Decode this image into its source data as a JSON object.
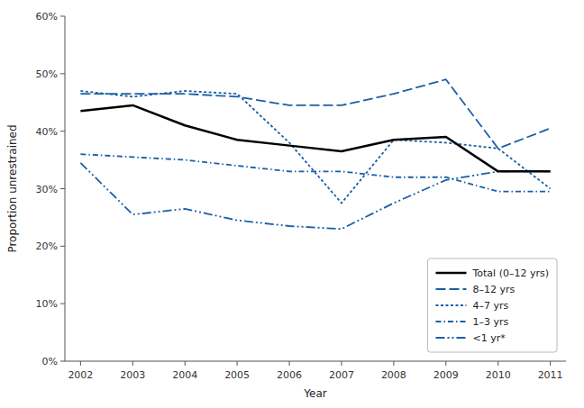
{
  "chart_data": {
    "type": "line",
    "xlabel": "Year",
    "ylabel": "Proportion unrestrained",
    "x": [
      2002,
      2003,
      2004,
      2005,
      2006,
      2007,
      2008,
      2009,
      2010,
      2011
    ],
    "xlim": [
      2001.7,
      2011.3
    ],
    "xticks": [
      2002,
      2003,
      2004,
      2005,
      2006,
      2007,
      2008,
      2009,
      2010,
      2011
    ],
    "ylim": [
      0,
      60
    ],
    "yticks": [
      {
        "value": 0,
        "label": "0%"
      },
      {
        "value": 10,
        "label": "10%"
      },
      {
        "value": 20,
        "label": "20%"
      },
      {
        "value": 30,
        "label": "30%"
      },
      {
        "value": 40,
        "label": "40%"
      },
      {
        "value": 50,
        "label": "50%"
      },
      {
        "value": 60,
        "label": "60%"
      }
    ],
    "grid": false,
    "legend": "lower right",
    "series": [
      {
        "name": "Total (0–12 yrs)",
        "color": "#000000",
        "line_style": "solid",
        "values": [
          43.5,
          44.5,
          41.0,
          38.5,
          37.5,
          36.5,
          38.5,
          39.0,
          33.0,
          33.0
        ]
      },
      {
        "name": "8–12 yrs",
        "color": "#1a5fa8",
        "line_style": "dashed",
        "values": [
          46.5,
          46.5,
          46.5,
          46.0,
          44.5,
          44.5,
          46.5,
          49.0,
          37.0,
          40.5
        ]
      },
      {
        "name": "4–7 yrs",
        "color": "#1a5fa8",
        "line_style": "dotted",
        "values": [
          47.0,
          46.0,
          47.0,
          46.5,
          38.0,
          27.5,
          38.5,
          38.0,
          37.0,
          30.0
        ]
      },
      {
        "name": "1–3 yrs",
        "color": "#1a5fa8",
        "line_style": "dashdot",
        "values": [
          36.0,
          35.5,
          35.0,
          34.0,
          33.0,
          33.0,
          32.0,
          32.0,
          29.5,
          29.5
        ]
      },
      {
        "name": "<1 yr*",
        "color": "#1a5fa8",
        "line_style": "dashdotdot",
        "values": [
          34.5,
          25.5,
          26.5,
          24.5,
          23.5,
          23.0,
          27.5,
          31.5,
          33.0,
          33.0
        ]
      }
    ]
  }
}
